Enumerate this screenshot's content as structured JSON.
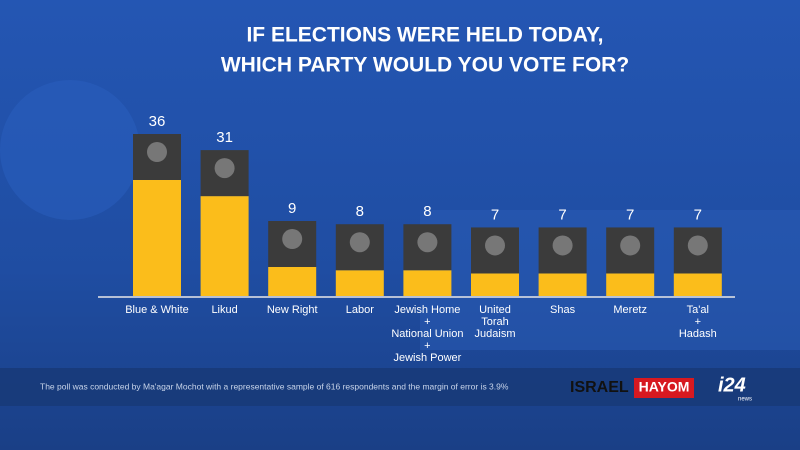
{
  "chart_data": {
    "type": "bar",
    "title": [
      "IF ELECTIONS WERE HELD TODAY,",
      "WHICH PARTY WOULD YOU VOTE FOR?"
    ],
    "categories": [
      "Blue & White",
      "Likud",
      "New Right",
      "Labor",
      "Jewish Home\n+\nNational Union\n+\nJewish Power",
      "United\nTorah\nJudaism",
      "Shas",
      "Meretz",
      "Ta'al\n+\nHadash"
    ],
    "values": [
      36,
      31,
      9,
      8,
      8,
      7,
      7,
      7,
      7
    ],
    "color": "#fbbd1b",
    "note": "The poll was conducted by Ma'agar Mochot with a representative sample of 616 respondents and the margin of error is 3.9%",
    "logos": {
      "israel": "ISRAEL",
      "hayom": "HAYOM",
      "i24": "i24",
      "news": "news"
    }
  }
}
